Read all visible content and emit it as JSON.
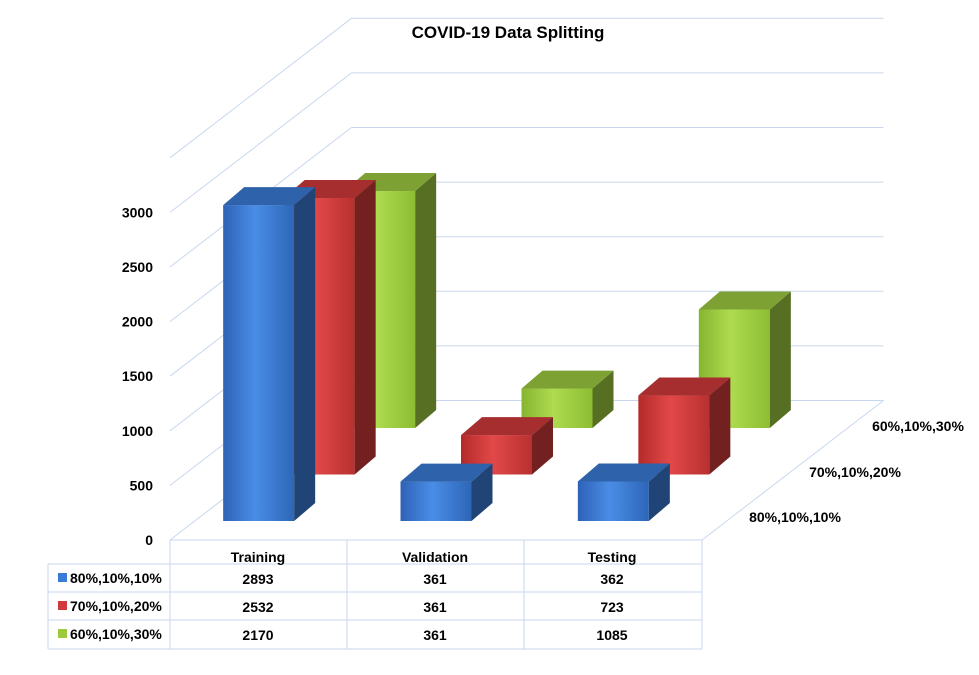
{
  "chart_data": {
    "type": "bar",
    "title": "COVID-19 Data Splitting",
    "categories": [
      "Training",
      "Validation",
      "Testing"
    ],
    "series": [
      {
        "name": "80%,10%,10%",
        "values": [
          2893,
          361,
          362
        ],
        "color": "#3A7BD5"
      },
      {
        "name": "70%,10%,20%",
        "values": [
          2532,
          361,
          723
        ],
        "color": "#D03A3A"
      },
      {
        "name": "60%,10%,30%",
        "values": [
          2170,
          361,
          1085
        ],
        "color": "#9CC93E"
      }
    ],
    "y_ticks": [
      "0",
      "500",
      "1000",
      "1500",
      "2000",
      "2500",
      "3000"
    ],
    "ylim": [
      0,
      3500
    ],
    "grid": true,
    "legend": "data-table"
  }
}
